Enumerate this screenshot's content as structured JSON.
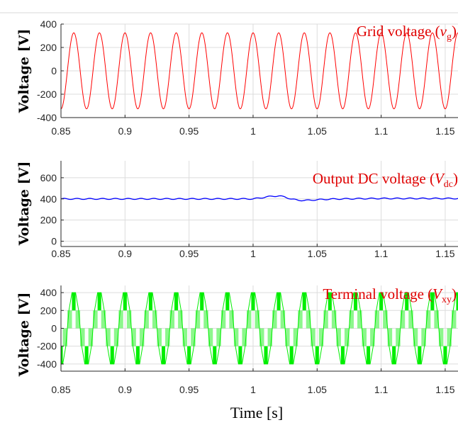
{
  "figure": {
    "xlabel": "Time [s]"
  },
  "chart_data": [
    {
      "type": "line",
      "ylabel": "Voltage [V]",
      "annotation": {
        "prefix": "Grid voltage (",
        "var": "v",
        "sub": "g",
        "suffix": ")"
      },
      "xlim": [
        0.85,
        1.16
      ],
      "ylim": [
        -400,
        400
      ],
      "xticks": [
        0.85,
        0.9,
        0.95,
        1,
        1.05,
        1.1,
        1.15
      ],
      "xtick_labels": [
        "0.85",
        "0.9",
        "0.95",
        "1",
        "1.05",
        "1.1",
        "1.15"
      ],
      "yticks": [
        400,
        200,
        0,
        -200,
        -400
      ],
      "ytick_labels": [
        "400",
        "200",
        "0",
        "-200",
        "-400"
      ],
      "grid": true,
      "series": [
        {
          "color": "#ff0000",
          "waveform": "sine",
          "amplitude": 325,
          "frequency_hz": 50,
          "phase_zero_time": 0.855
        }
      ]
    },
    {
      "type": "line",
      "ylabel": "Voltage [V]",
      "annotation": {
        "prefix": "Output DC voltage (",
        "var": "V",
        "sub": "dc",
        "suffix": ")"
      },
      "xlim": [
        0.85,
        1.16
      ],
      "ylim": [
        -50,
        760
      ],
      "xticks": [
        0.85,
        0.9,
        0.95,
        1,
        1.05,
        1.1,
        1.15
      ],
      "xtick_labels": [
        "0.85",
        "0.9",
        "0.95",
        "1",
        "1.05",
        "1.1",
        "1.15"
      ],
      "yticks": [
        600,
        400,
        200,
        0
      ],
      "ytick_labels": [
        "600",
        "400",
        "200",
        "0"
      ],
      "grid": true,
      "series": [
        {
          "color": "#0000ff",
          "waveform": "dc",
          "x": [
            0.85,
            0.9,
            0.95,
            1.0,
            1.005,
            1.01,
            1.015,
            1.02,
            1.025,
            1.03,
            1.035,
            1.04,
            1.045,
            1.05,
            1.06,
            1.08,
            1.1,
            1.13,
            1.16
          ],
          "y": [
            400,
            400,
            400,
            400,
            408,
            418,
            425,
            428,
            418,
            398,
            388,
            385,
            388,
            392,
            398,
            402,
            404,
            404,
            404
          ],
          "ripple": 5
        }
      ]
    },
    {
      "type": "line",
      "ylabel": "Voltage [V]",
      "annotation": {
        "prefix": "Terminal voltage (",
        "var": "V",
        "sub": "xy",
        "suffix": ")"
      },
      "xlim": [
        0.85,
        1.16
      ],
      "ylim": [
        -480,
        480
      ],
      "xticks": [
        0.85,
        0.9,
        0.95,
        1,
        1.05,
        1.1,
        1.15
      ],
      "xtick_labels": [
        "0.85",
        "0.9",
        "0.95",
        "1",
        "1.05",
        "1.1",
        "1.15"
      ],
      "yticks": [
        400,
        200,
        0,
        -200,
        -400
      ],
      "ytick_labels": [
        "400",
        "200",
        "0",
        "-200",
        "-400"
      ],
      "grid": true,
      "series": [
        {
          "color": "#00ee00",
          "waveform": "three-level PWM",
          "levels": [
            -400,
            0,
            400
          ],
          "frequency_hz": 50,
          "phase_zero_time": 0.855
        }
      ]
    }
  ]
}
